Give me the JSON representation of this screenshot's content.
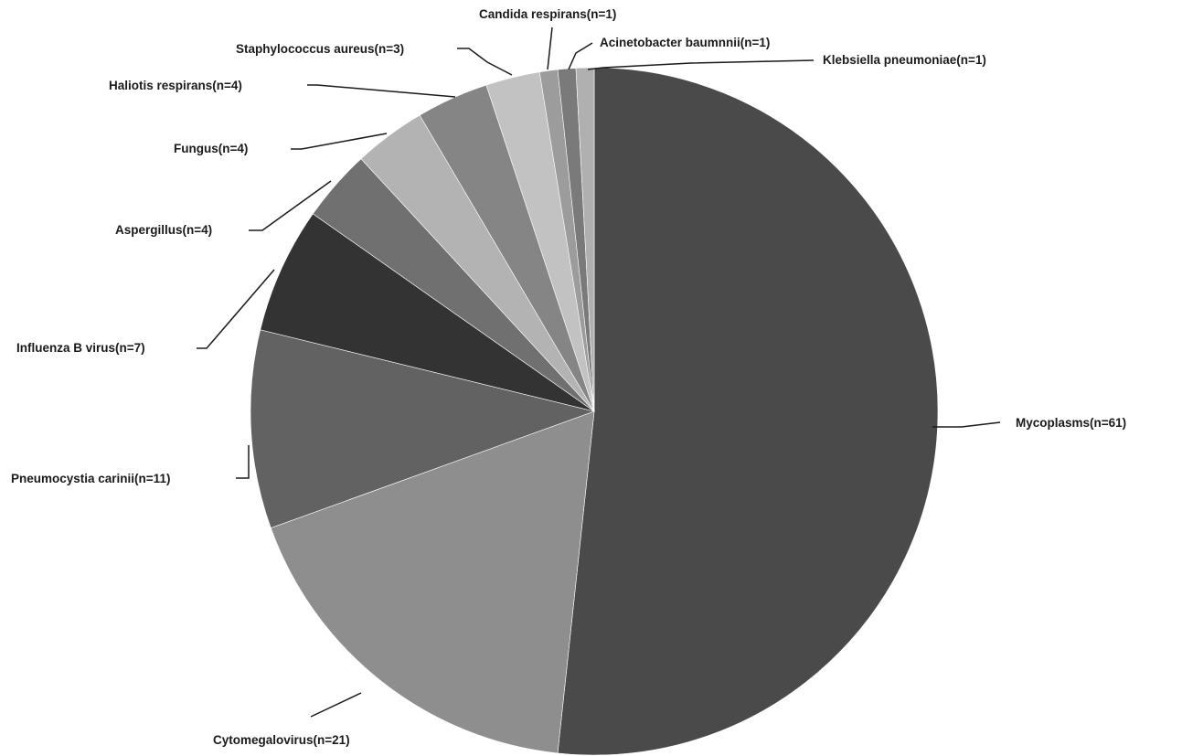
{
  "chart_data": {
    "type": "pie",
    "title": "",
    "start_angle_deg": 0,
    "direction": "clockwise",
    "legend": "none",
    "slices": [
      {
        "label": "Mycoplasms(n=61)",
        "name": "Mycoplasms",
        "value": 61,
        "color": "#4a4a4a"
      },
      {
        "label": "Cytomegalovirus(n=21)",
        "name": "Cytomegalovirus",
        "value": 21,
        "color": "#8e8e8e"
      },
      {
        "label": "Pneumocystia carinii(n=11)",
        "name": "Pneumocystia carinii",
        "value": 11,
        "color": "#626262"
      },
      {
        "label": "Influenza B virus(n=7)",
        "name": "Influenza B virus",
        "value": 7,
        "color": "#333333"
      },
      {
        "label": "Aspergillus(n=4)",
        "name": "Aspergillus",
        "value": 4,
        "color": "#707070"
      },
      {
        "label": "Fungus(n=4)",
        "name": "Fungus",
        "value": 4,
        "color": "#b3b3b3"
      },
      {
        "label": "Haliotis respirans(n=4)",
        "name": "Haliotis respirans",
        "value": 4,
        "color": "#858585"
      },
      {
        "label": "Staphylococcus aureus(n=3)",
        "name": "Staphylococcus aureus",
        "value": 3,
        "color": "#c2c2c2"
      },
      {
        "label": "Candida respirans(n=1)",
        "name": "Candida respirans",
        "value": 1,
        "color": "#9c9c9c"
      },
      {
        "label": "Acinetobacter baumnnii(n=1)",
        "name": "Acinetobacter baumnnii",
        "value": 1,
        "color": "#7a7a7a"
      },
      {
        "label": "Klebsiella pneumoniae(n=1)",
        "name": "Klebsiella pneumoniae",
        "value": 1,
        "color": "#b0b0b0"
      }
    ]
  }
}
